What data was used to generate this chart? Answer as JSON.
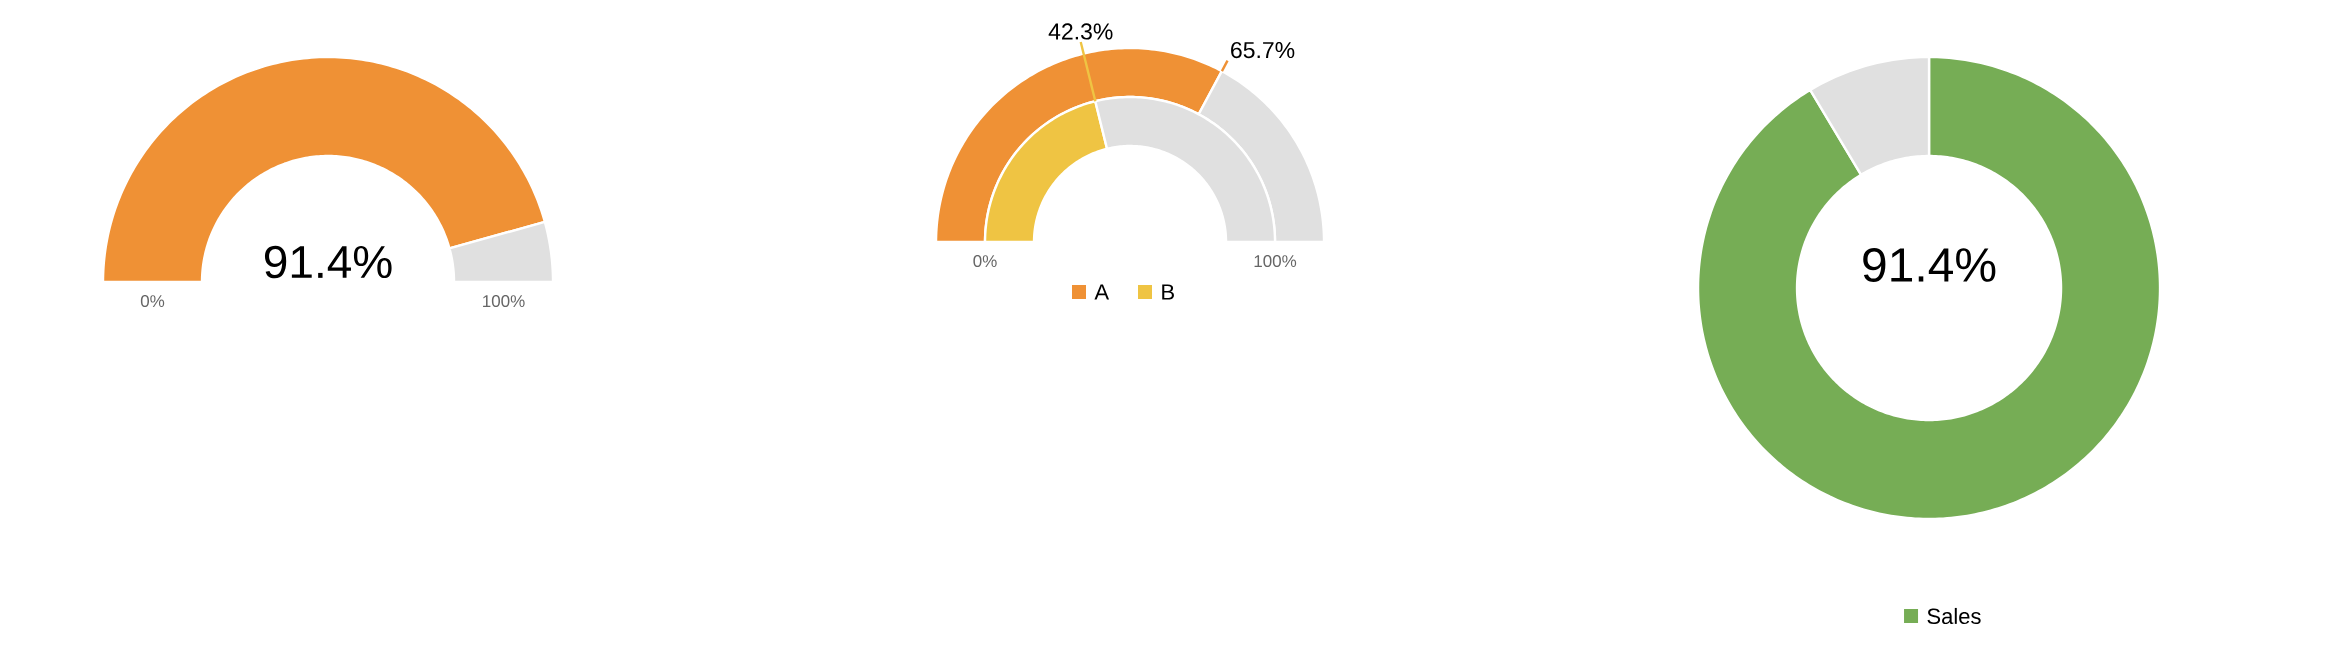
{
  "chart_data": [
    {
      "type": "donut",
      "categories": [
        null,
        null
      ],
      "values": [
        91.4,
        8.6
      ],
      "colors": [
        "#ef9135",
        "#e0e0e0"
      ],
      "value_labels": [
        "91.4%",
        null
      ],
      "annotations": [
        "0%",
        "100%"
      ],
      "legend": false
    },
    {
      "type": "donut",
      "categories": [
        null,
        null
      ],
      "series": [
        {
          "name": "A",
          "colors": [
            "#ef9135",
            "#e0e0e0"
          ],
          "values": [
            65.7,
            34.3
          ],
          "value_labels": [
            "65.7%",
            null
          ]
        },
        {
          "name": "B",
          "colors": [
            "#efc443",
            "#e0e0e0"
          ],
          "values": [
            42.3,
            57.7
          ],
          "value_labels": [
            "42.3%",
            null
          ]
        }
      ],
      "annotations": [
        "0%",
        "100%"
      ],
      "legend": "bottom"
    },
    {
      "type": "donut",
      "categories": [
        null,
        null
      ],
      "series": [
        {
          "name": "Sales",
          "colors": [
            "#76ad55",
            "#e0e0e0"
          ],
          "values": [
            91.4,
            8.6
          ],
          "value_labels": [
            "91.4%",
            null
          ]
        }
      ],
      "legend": "bottom"
    }
  ]
}
